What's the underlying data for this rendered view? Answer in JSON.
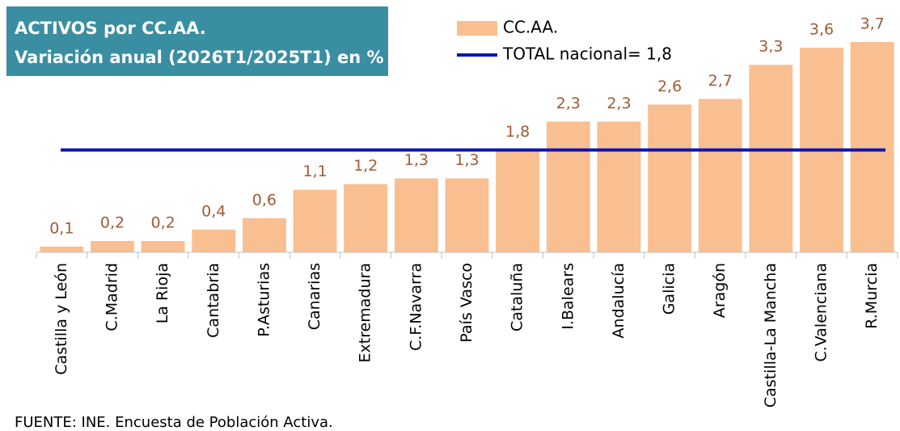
{
  "chart_data": {
    "type": "bar",
    "title": [
      "ACTIVOS por CC.AA.",
      "Variación anual (2026T1/2025T1) en %"
    ],
    "categories": [
      "Castilla y León",
      "C.Madrid",
      "La Rioja",
      "Cantabria",
      "P.Asturias",
      "Canarias",
      "Extremadura",
      "C.F.Navarra",
      "País Vasco",
      "Cataluña",
      "I.Balears",
      "Andalucía",
      "Galicia",
      "Aragón",
      "Castilla-La Mancha",
      "C.Valenciana",
      "R.Murcia"
    ],
    "series": [
      {
        "name": "CC.AA.",
        "color": "#f9bf91",
        "values": [
          0.1,
          0.2,
          0.2,
          0.4,
          0.6,
          1.1,
          1.2,
          1.3,
          1.3,
          1.8,
          2.3,
          2.3,
          2.6,
          2.7,
          3.3,
          3.6,
          3.7
        ],
        "value_labels": [
          "0,1",
          "0,2",
          "0,2",
          "0,4",
          "0,6",
          "1,1",
          "1,2",
          "1,3",
          "1,3",
          "1,8",
          "2,3",
          "2,3",
          "2,6",
          "2,7",
          "3,3",
          "3,6",
          "3,7"
        ]
      }
    ],
    "reference": {
      "name": "TOTAL nacional= 1,8",
      "value": 1.8,
      "color": "#0a14b4"
    },
    "ylim": [
      0,
      3.8
    ],
    "source": "FUENTE: INE. Encuesta de Población Activa."
  }
}
